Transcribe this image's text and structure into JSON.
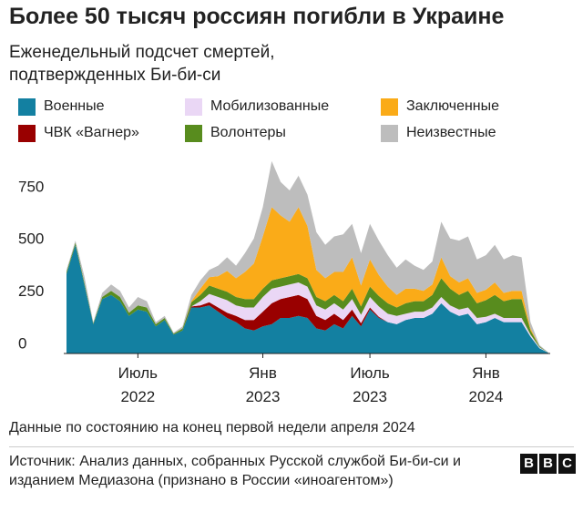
{
  "chart_data": {
    "type": "stacked-area",
    "title": "Более 50 тысяч россиян погибли в Украине",
    "subtitle": "Еженедельный подсчет смертей, подтвержденных Би-би-си",
    "note": "Данные по состоянию на конец первой недели апреля 2024",
    "source": "Источник: Анализ данных, собранных Русской службой Би-би-си и изданием Медиазона (признано в России «иноагентом»)",
    "logo": [
      "B",
      "B",
      "C"
    ],
    "categories": [
      null,
      null,
      null,
      null,
      null,
      null,
      null,
      null,
      "Июль 2022",
      null,
      null,
      null,
      null,
      null,
      null,
      null,
      null,
      null,
      null,
      null,
      null,
      null,
      "Янв 2023",
      null,
      null,
      null,
      null,
      null,
      null,
      null,
      null,
      null,
      null,
      null,
      "Июль 2023",
      null,
      null,
      null,
      null,
      null,
      null,
      null,
      null,
      null,
      null,
      null,
      null,
      "Янв 2024",
      null,
      null,
      null,
      null,
      null,
      null,
      null
    ],
    "ylim": [
      0,
      950
    ],
    "yticks": [
      0,
      250,
      500,
      750
    ],
    "grid": false,
    "series": [
      {
        "name": "Военные",
        "color": "#1380a1",
        "values": [
          380,
          520,
          330,
          140,
          260,
          280,
          250,
          180,
          210,
          200,
          130,
          160,
          90,
          110,
          220,
          220,
          230,
          200,
          170,
          150,
          120,
          110,
          130,
          140,
          170,
          170,
          180,
          170,
          120,
          110,
          140,
          120,
          180,
          130,
          210,
          170,
          150,
          140,
          160,
          170,
          170,
          190,
          240,
          200,
          180,
          190,
          140,
          150,
          170,
          150,
          150,
          150,
          80,
          25,
          3
        ]
      },
      {
        "name": "ЧВК «Вагнер»",
        "color": "#990000",
        "values": [
          0,
          0,
          0,
          0,
          0,
          0,
          0,
          0,
          0,
          0,
          0,
          0,
          0,
          0,
          5,
          10,
          15,
          20,
          25,
          30,
          40,
          50,
          70,
          100,
          90,
          100,
          100,
          90,
          60,
          50,
          50,
          40,
          30,
          15,
          10,
          5,
          0,
          0,
          0,
          0,
          0,
          0,
          0,
          0,
          0,
          0,
          0,
          0,
          0,
          0,
          0,
          0,
          0,
          0,
          0
        ]
      },
      {
        "name": "Мобилизованные",
        "color": "#ead7f5",
        "values": [
          0,
          0,
          0,
          0,
          0,
          0,
          0,
          0,
          0,
          0,
          0,
          0,
          0,
          0,
          0,
          20,
          40,
          50,
          60,
          50,
          60,
          60,
          70,
          70,
          60,
          60,
          60,
          60,
          50,
          50,
          50,
          50,
          50,
          40,
          50,
          50,
          40,
          40,
          30,
          30,
          30,
          30,
          30,
          30,
          30,
          30,
          30,
          25,
          20,
          20,
          20,
          20,
          10,
          5,
          0
        ]
      },
      {
        "name": "Волонтеры",
        "color": "#588c1e",
        "values": [
          10,
          10,
          10,
          5,
          10,
          20,
          20,
          15,
          20,
          20,
          10,
          10,
          5,
          10,
          20,
          30,
          40,
          40,
          40,
          40,
          40,
          40,
          40,
          40,
          40,
          40,
          40,
          40,
          40,
          40,
          40,
          40,
          50,
          40,
          50,
          50,
          50,
          40,
          50,
          50,
          50,
          60,
          90,
          80,
          70,
          80,
          70,
          80,
          90,
          80,
          90,
          90,
          20,
          5,
          0
        ]
      },
      {
        "name": "Заключенные",
        "color": "#faab18",
        "values": [
          0,
          0,
          0,
          0,
          0,
          0,
          0,
          0,
          0,
          0,
          0,
          0,
          0,
          0,
          5,
          30,
          40,
          60,
          100,
          90,
          130,
          170,
          250,
          350,
          300,
          260,
          320,
          250,
          130,
          110,
          110,
          140,
          150,
          100,
          130,
          100,
          80,
          60,
          70,
          60,
          50,
          50,
          100,
          60,
          60,
          60,
          50,
          50,
          60,
          40,
          40,
          40,
          10,
          0,
          0
        ]
      },
      {
        "name": "Неизвестные",
        "color": "#bdbdbd",
        "values": [
          10,
          10,
          30,
          5,
          20,
          30,
          30,
          25,
          40,
          30,
          10,
          10,
          5,
          10,
          30,
          40,
          35,
          50,
          65,
          60,
          90,
          120,
          140,
          220,
          160,
          150,
          150,
          150,
          180,
          160,
          170,
          180,
          160,
          155,
          170,
          165,
          150,
          130,
          140,
          110,
          100,
          110,
          170,
          180,
          200,
          200,
          160,
          165,
          180,
          160,
          170,
          160,
          30,
          5,
          2
        ]
      }
    ]
  }
}
